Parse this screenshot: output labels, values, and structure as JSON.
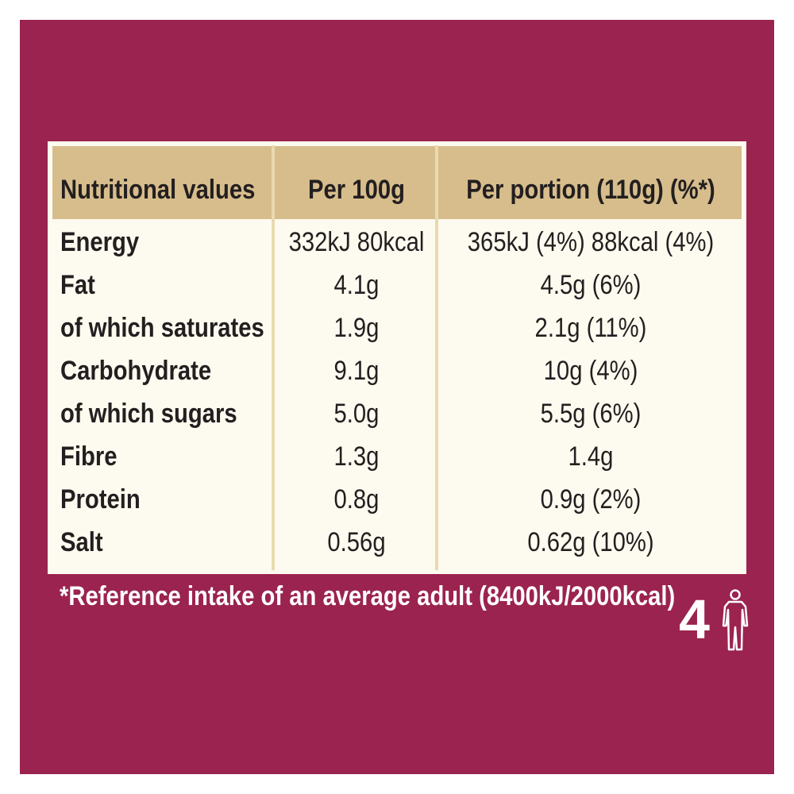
{
  "table": {
    "headers": {
      "name": "Nutritional values",
      "per100": "Per 100g",
      "perPortion": "Per portion (110g) (%*)"
    },
    "rows": [
      {
        "name": "Energy",
        "per100": "332kJ 80kcal",
        "perPortion": "365kJ (4%) 88kcal (4%)"
      },
      {
        "name": "Fat",
        "per100": "4.1g",
        "perPortion": "4.5g (6%)"
      },
      {
        "name": "of which saturates",
        "per100": "1.9g",
        "perPortion": "2.1g (11%)"
      },
      {
        "name": "Carbohydrate",
        "per100": "9.1g",
        "perPortion": "10g (4%)"
      },
      {
        "name": "of which sugars",
        "per100": "5.0g",
        "perPortion": "5.5g (6%)"
      },
      {
        "name": "Fibre",
        "per100": "1.3g",
        "perPortion": "1.4g"
      },
      {
        "name": "Protein",
        "per100": "0.8g",
        "perPortion": "0.9g (2%)"
      },
      {
        "name": "Salt",
        "per100": "0.56g",
        "perPortion": "0.62g (10%)"
      }
    ]
  },
  "footnote": "*Reference intake of an average adult (8400kJ/2000kcal)",
  "portions": {
    "count": "4",
    "icon": "person-icon"
  },
  "colors": {
    "background": "#9b234f",
    "header": "#d7bd8c",
    "table": "#fdfbef",
    "divider": "#ead9b0",
    "text": "#231f20"
  }
}
